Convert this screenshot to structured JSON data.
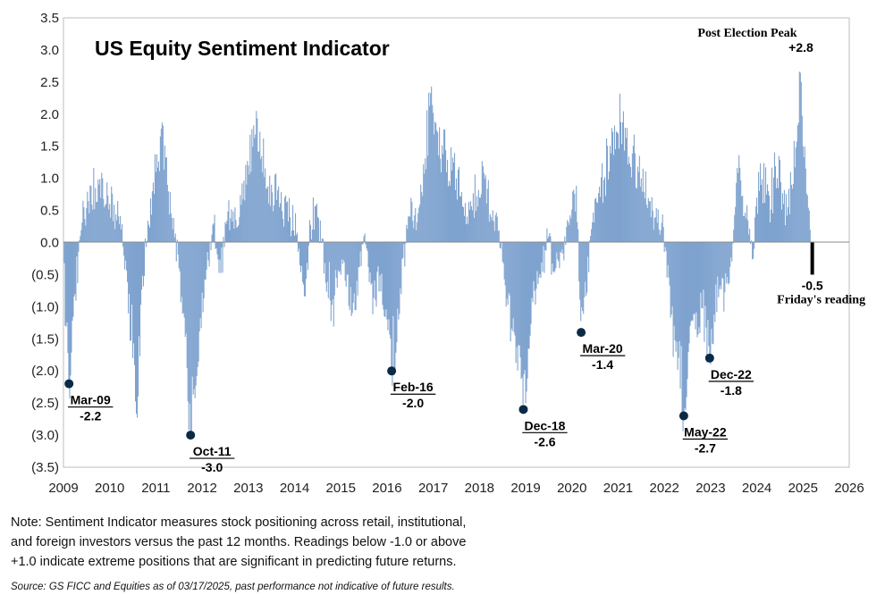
{
  "chart_data": {
    "type": "bar",
    "title": "US Equity Sentiment Indicator",
    "xlabel": "",
    "ylabel": "",
    "ylim": [
      -3.5,
      3.5
    ],
    "xlim": [
      2009,
      2026
    ],
    "y_ticks": [
      3.5,
      3.0,
      2.5,
      2.0,
      1.5,
      1.0,
      0.5,
      0.0,
      -0.5,
      -1.0,
      -1.5,
      -2.0,
      -2.5,
      -3.0,
      -3.5
    ],
    "y_tick_labels": [
      "3.5",
      "3.0",
      "2.5",
      "2.0",
      "1.5",
      "1.0",
      "0.5",
      "0.0",
      "(0.5)",
      "(1.0)",
      "(1.5)",
      "(2.0)",
      "(2.5)",
      "(3.0)",
      "(3.5)"
    ],
    "x_ticks": [
      2009,
      2010,
      2011,
      2012,
      2013,
      2014,
      2015,
      2016,
      2017,
      2018,
      2019,
      2020,
      2021,
      2022,
      2023,
      2024,
      2025,
      2026
    ],
    "x_tick_labels": [
      "2009",
      "2010",
      "2011",
      "2012",
      "2013",
      "2014",
      "2015",
      "2016",
      "2017",
      "2018",
      "2019",
      "2020",
      "2021",
      "2022",
      "2023",
      "2024",
      "2025",
      "2026"
    ],
    "grid": false,
    "bar_color": "#7fa3cf",
    "latest_bar_color": "#000000",
    "marker_color": "#0b2a45",
    "series_anchors": [
      [
        2009.0,
        0.0
      ],
      [
        2009.05,
        -1.2
      ],
      [
        2009.12,
        -2.2
      ],
      [
        2009.25,
        -0.8
      ],
      [
        2009.4,
        0.3
      ],
      [
        2009.6,
        0.9
      ],
      [
        2009.8,
        0.7
      ],
      [
        2010.0,
        0.6
      ],
      [
        2010.2,
        0.4
      ],
      [
        2010.35,
        -0.3
      ],
      [
        2010.5,
        -1.8
      ],
      [
        2010.58,
        -2.7
      ],
      [
        2010.7,
        -0.6
      ],
      [
        2010.85,
        0.3
      ],
      [
        2011.0,
        1.1
      ],
      [
        2011.12,
        1.8
      ],
      [
        2011.25,
        0.9
      ],
      [
        2011.4,
        0.1
      ],
      [
        2011.5,
        -0.4
      ],
      [
        2011.62,
        -1.2
      ],
      [
        2011.75,
        -3.0
      ],
      [
        2011.85,
        -2.4
      ],
      [
        2011.95,
        -1.3
      ],
      [
        2012.1,
        -0.4
      ],
      [
        2012.25,
        0.3
      ],
      [
        2012.4,
        -0.5
      ],
      [
        2012.55,
        0.5
      ],
      [
        2012.7,
        0.2
      ],
      [
        2012.85,
        0.6
      ],
      [
        2013.0,
        1.2
      ],
      [
        2013.15,
        1.7
      ],
      [
        2013.3,
        1.1
      ],
      [
        2013.5,
        0.9
      ],
      [
        2013.7,
        0.6
      ],
      [
        2013.9,
        0.4
      ],
      [
        2014.05,
        0.2
      ],
      [
        2014.2,
        -0.7
      ],
      [
        2014.35,
        0.3
      ],
      [
        2014.5,
        0.4
      ],
      [
        2014.65,
        -0.3
      ],
      [
        2014.8,
        -1.0
      ],
      [
        2014.95,
        -0.4
      ],
      [
        2015.1,
        -0.6
      ],
      [
        2015.25,
        -1.1
      ],
      [
        2015.4,
        -0.4
      ],
      [
        2015.5,
        0.1
      ],
      [
        2015.6,
        -0.4
      ],
      [
        2015.72,
        -0.9
      ],
      [
        2015.85,
        -0.5
      ],
      [
        2016.0,
        -1.2
      ],
      [
        2016.1,
        -2.0
      ],
      [
        2016.25,
        -1.2
      ],
      [
        2016.35,
        -0.2
      ],
      [
        2016.5,
        0.4
      ],
      [
        2016.65,
        0.3
      ],
      [
        2016.8,
        1.0
      ],
      [
        2016.95,
        2.4
      ],
      [
        2017.1,
        1.7
      ],
      [
        2017.3,
        1.3
      ],
      [
        2017.5,
        1.0
      ],
      [
        2017.7,
        0.6
      ],
      [
        2017.85,
        0.5
      ],
      [
        2018.0,
        0.7
      ],
      [
        2018.1,
        1.1
      ],
      [
        2018.25,
        0.4
      ],
      [
        2018.4,
        0.2
      ],
      [
        2018.5,
        -0.3
      ],
      [
        2018.6,
        -0.9
      ],
      [
        2018.75,
        -1.4
      ],
      [
        2018.85,
        -1.6
      ],
      [
        2018.95,
        -2.6
      ],
      [
        2019.05,
        -1.7
      ],
      [
        2019.2,
        -0.7
      ],
      [
        2019.35,
        -0.3
      ],
      [
        2019.5,
        0.1
      ],
      [
        2019.65,
        -0.4
      ],
      [
        2019.8,
        -0.2
      ],
      [
        2019.95,
        0.3
      ],
      [
        2020.1,
        0.9
      ],
      [
        2020.2,
        -1.4
      ],
      [
        2020.3,
        -0.9
      ],
      [
        2020.42,
        0.2
      ],
      [
        2020.55,
        0.6
      ],
      [
        2020.7,
        1.0
      ],
      [
        2020.85,
        1.4
      ],
      [
        2021.0,
        1.7
      ],
      [
        2021.15,
        1.8
      ],
      [
        2021.3,
        1.4
      ],
      [
        2021.5,
        1.0
      ],
      [
        2021.65,
        0.7
      ],
      [
        2021.8,
        0.4
      ],
      [
        2021.95,
        0.3
      ],
      [
        2022.05,
        -0.5
      ],
      [
        2022.15,
        -1.1
      ],
      [
        2022.25,
        -1.7
      ],
      [
        2022.35,
        -2.3
      ],
      [
        2022.42,
        -2.7
      ],
      [
        2022.52,
        -1.7
      ],
      [
        2022.62,
        -1.2
      ],
      [
        2022.72,
        -1.5
      ],
      [
        2022.82,
        -1.0
      ],
      [
        2022.9,
        -1.3
      ],
      [
        2022.98,
        -1.8
      ],
      [
        2023.08,
        -1.1
      ],
      [
        2023.2,
        -0.7
      ],
      [
        2023.3,
        -0.8
      ],
      [
        2023.42,
        -0.4
      ],
      [
        2023.5,
        0.2
      ],
      [
        2023.58,
        1.2
      ],
      [
        2023.7,
        0.7
      ],
      [
        2023.8,
        0.4
      ],
      [
        2023.9,
        -0.3
      ],
      [
        2024.0,
        0.7
      ],
      [
        2024.12,
        1.0
      ],
      [
        2024.25,
        0.8
      ],
      [
        2024.4,
        1.2
      ],
      [
        2024.55,
        0.8
      ],
      [
        2024.65,
        0.4
      ],
      [
        2024.75,
        0.9
      ],
      [
        2024.87,
        1.6
      ],
      [
        2024.93,
        2.8
      ],
      [
        2025.0,
        1.5
      ],
      [
        2025.07,
        0.8
      ],
      [
        2025.13,
        0.5
      ],
      [
        2025.17,
        0.5
      ]
    ],
    "latest_reading": {
      "x": 2025.2,
      "value": -0.5,
      "label": "-0.5",
      "caption": "Friday's reading"
    },
    "peak_annotation": {
      "x": 2024.93,
      "value": 2.8,
      "title": "Post Election Peak",
      "label": "+2.8"
    },
    "annotations": [
      {
        "date_label": "Mar-09",
        "value_label": "-2.2",
        "x": 2009.12,
        "value": -2.2
      },
      {
        "date_label": "Oct-11",
        "value_label": "-3.0",
        "x": 2011.75,
        "value": -3.0
      },
      {
        "date_label": "Feb-16",
        "value_label": "-2.0",
        "x": 2016.1,
        "value": -2.0
      },
      {
        "date_label": "Dec-18",
        "value_label": "-2.6",
        "x": 2018.95,
        "value": -2.6
      },
      {
        "date_label": "Mar-20",
        "value_label": "-1.4",
        "x": 2020.2,
        "value": -1.4
      },
      {
        "date_label": "May-22",
        "value_label": "-2.7",
        "x": 2022.42,
        "value": -2.7
      },
      {
        "date_label": "Dec-22",
        "value_label": "-1.8",
        "x": 2022.98,
        "value": -1.8
      }
    ]
  },
  "note": {
    "lines": [
      "Note: Sentiment Indicator measures stock positioning across retail, institutional,",
      "and foreign investors versus the past 12 months. Readings below -1.0 or above",
      "+1.0 indicate extreme positions that are significant in predicting future returns."
    ],
    "source": "Source: GS FICC and Equities as of 03/17/2025, past performance not indicative of future results."
  }
}
